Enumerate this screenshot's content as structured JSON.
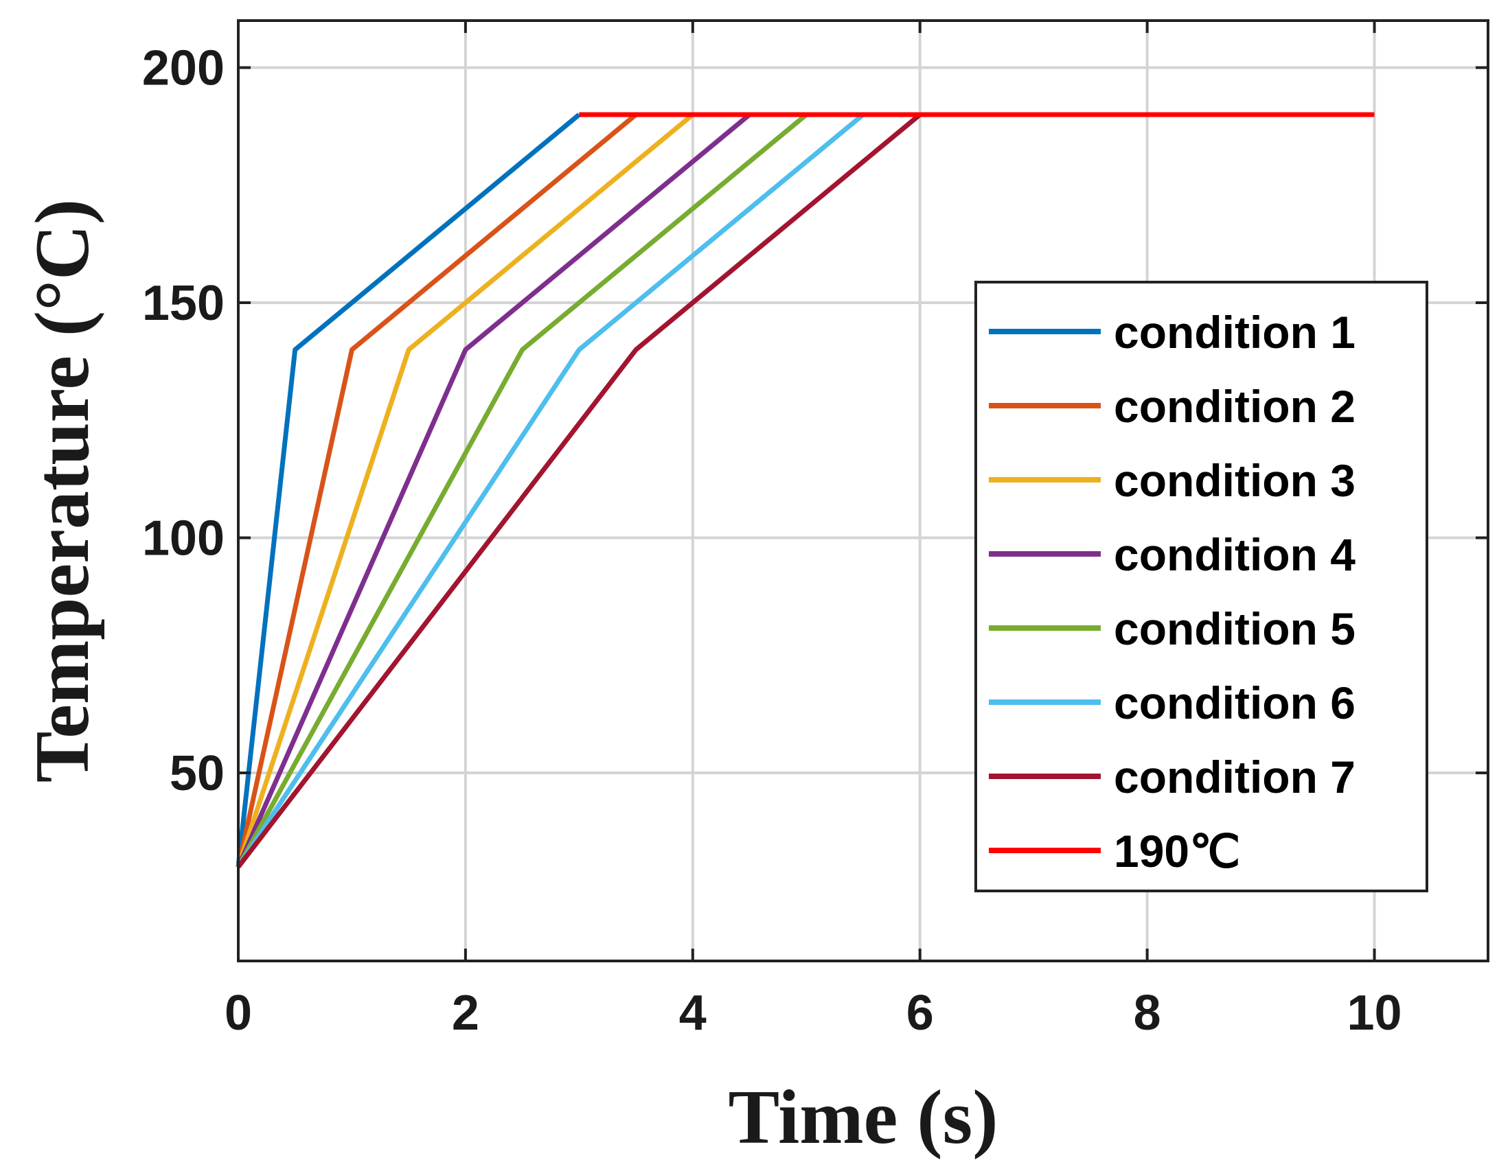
{
  "chart_data": {
    "type": "line",
    "title": "",
    "xlabel": "Time (s)",
    "ylabel": "Temperature (°C)",
    "xlim": [
      0,
      11
    ],
    "ylim": [
      10,
      210
    ],
    "xticks": [
      0,
      2,
      4,
      6,
      8,
      10
    ],
    "yticks": [
      50,
      100,
      150,
      200
    ],
    "xtick_labels": [
      "0",
      "2",
      "4",
      "6",
      "8",
      "10"
    ],
    "ytick_labels": [
      "50",
      "100",
      "150",
      "200"
    ],
    "grid": true,
    "legend_position": "right",
    "series": [
      {
        "name": "condition 1",
        "color": "#0072BD",
        "x": [
          0,
          0.5,
          3
        ],
        "y": [
          30,
          140,
          190
        ]
      },
      {
        "name": "condition 2",
        "color": "#D95319",
        "x": [
          0,
          1,
          3.5
        ],
        "y": [
          30,
          140,
          190
        ]
      },
      {
        "name": "condition 3",
        "color": "#EDB120",
        "x": [
          0,
          1.5,
          4
        ],
        "y": [
          30,
          140,
          190
        ]
      },
      {
        "name": "condition 4",
        "color": "#7E2F8E",
        "x": [
          0,
          2,
          4.5
        ],
        "y": [
          30,
          140,
          190
        ]
      },
      {
        "name": "condition 5",
        "color": "#77AC30",
        "x": [
          0,
          2.5,
          5
        ],
        "y": [
          30,
          140,
          190
        ]
      },
      {
        "name": "condition 6",
        "color": "#4DBEEE",
        "x": [
          0,
          3,
          5.5
        ],
        "y": [
          30,
          140,
          190
        ]
      },
      {
        "name": "condition 7",
        "color": "#A2142F",
        "x": [
          0,
          3.5,
          6
        ],
        "y": [
          30,
          140,
          190
        ]
      },
      {
        "name": "190℃",
        "color": "#FF0000",
        "x": [
          3,
          10
        ],
        "y": [
          190,
          190
        ]
      }
    ]
  }
}
